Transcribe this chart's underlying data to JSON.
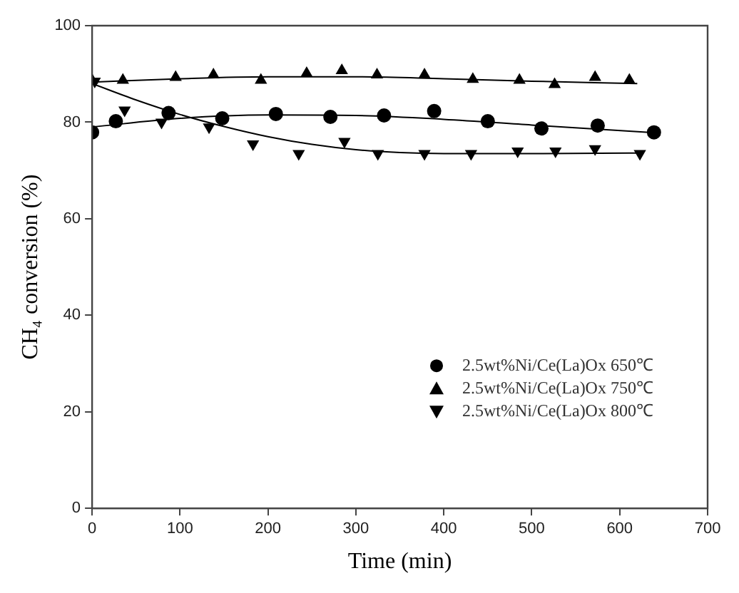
{
  "chart_data": {
    "type": "scatter",
    "xlabel": "Time (min)",
    "ylabel": "CH₄ conversion (%)",
    "xlim": [
      0,
      700
    ],
    "xticks": [
      0,
      100,
      200,
      300,
      400,
      500,
      600,
      700
    ],
    "ylim": [
      0,
      100
    ],
    "yticks": [
      0,
      20,
      40,
      60,
      80,
      100
    ],
    "grid": false,
    "legend": "bottom right",
    "series": [
      {
        "name": "2.5wt%Ni/Ce(La)Ox 650℃",
        "color": "#000000",
        "marker": "circle",
        "x": [
          0,
          27,
          87,
          148,
          209,
          271,
          332,
          389,
          450,
          511,
          575,
          639
        ],
        "values": [
          77.9,
          80.2,
          81.9,
          80.8,
          81.7,
          81.1,
          81.4,
          82.3,
          80.2,
          78.7,
          79.3,
          77.9
        ]
      },
      {
        "name": "2.5wt%Ni/Ce(La)Ox 750℃",
        "color": "#000000",
        "marker": "triangle",
        "x": [
          0,
          35,
          95,
          138,
          192,
          244,
          284,
          324,
          378,
          433,
          486,
          526,
          572,
          611
        ],
        "values": [
          88.7,
          88.7,
          89.3,
          89.8,
          88.7,
          90.1,
          90.7,
          89.8,
          89.8,
          88.9,
          88.7,
          87.8,
          89.3,
          88.7
        ]
      },
      {
        "name": "2.5wt%Ni/Ce(La)Ox 800℃",
        "color": "#000000",
        "marker": "triangle-down",
        "x": [
          3,
          37,
          79,
          133,
          183,
          235,
          287,
          325,
          378,
          431,
          484,
          527,
          572,
          623
        ],
        "values": [
          88.5,
          82.5,
          80,
          79,
          75.5,
          73.5,
          76,
          73.5,
          73.5,
          73.5,
          74,
          74,
          74.5,
          73.5
        ]
      },
      {
        "type": "line",
        "color": "#000000",
        "marker": "none",
        "x": [
          0,
          100,
          200,
          300,
          400,
          500,
          640
        ],
        "values": [
          79,
          80.8,
          81.5,
          81.4,
          80.6,
          79.4,
          77.8
        ]
      },
      {
        "type": "line",
        "color": "#000000",
        "marker": "none",
        "x": [
          0,
          100,
          200,
          300,
          400,
          500,
          620
        ],
        "values": [
          88.3,
          89,
          89.4,
          89.4,
          89,
          88.5,
          88
        ]
      },
      {
        "type": "line",
        "color": "#000000",
        "marker": "none",
        "x": [
          0,
          50,
          100,
          150,
          200,
          250,
          300,
          350,
          400,
          500,
          620
        ],
        "values": [
          88,
          84.6,
          81.6,
          79.1,
          77,
          75.4,
          74.3,
          73.7,
          73.5,
          73.5,
          73.6
        ]
      }
    ]
  }
}
